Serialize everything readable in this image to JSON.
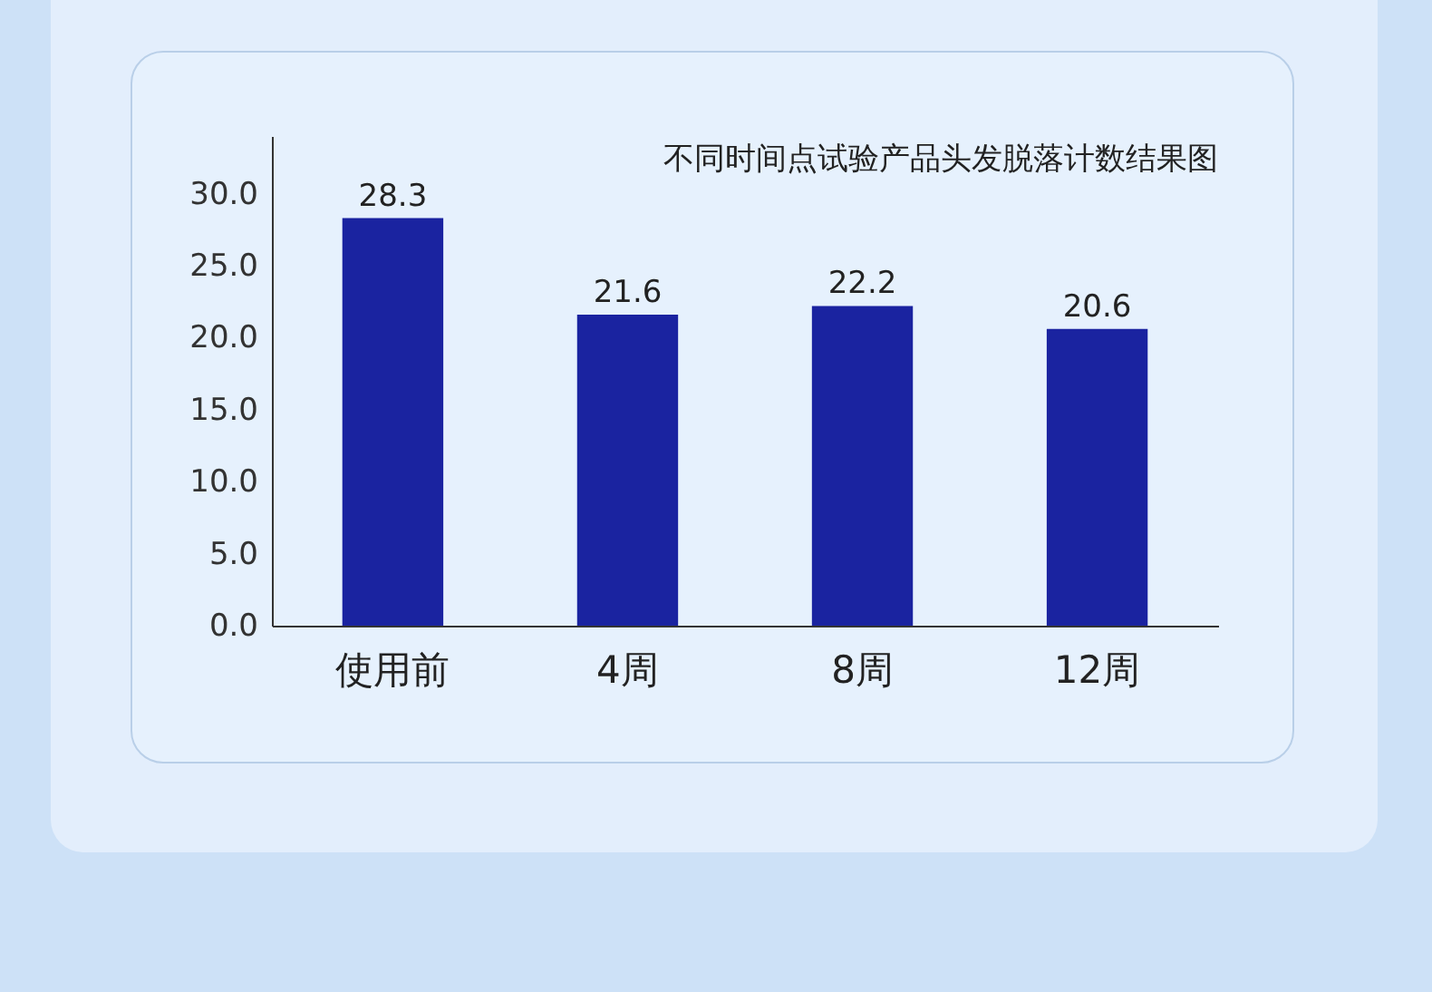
{
  "chart_data": {
    "type": "bar",
    "title": "不同时间点试验产品头发脱落计数结果图",
    "categories": [
      "使用前",
      "4周",
      "8周",
      "12周"
    ],
    "values": [
      28.3,
      21.6,
      22.2,
      20.6
    ],
    "color": "#1a23a0",
    "ylim": [
      0,
      34
    ],
    "yticks": [
      {
        "value": 0,
        "label": "0.0"
      },
      {
        "value": 5,
        "label": "5.0"
      },
      {
        "value": 10,
        "label": "10.0"
      },
      {
        "value": 15,
        "label": "15.0"
      },
      {
        "value": 20,
        "label": "20.0"
      },
      {
        "value": 25,
        "label": "25.0"
      },
      {
        "value": 30,
        "label": "30.0"
      }
    ],
    "grid": false,
    "data_labels": true
  }
}
